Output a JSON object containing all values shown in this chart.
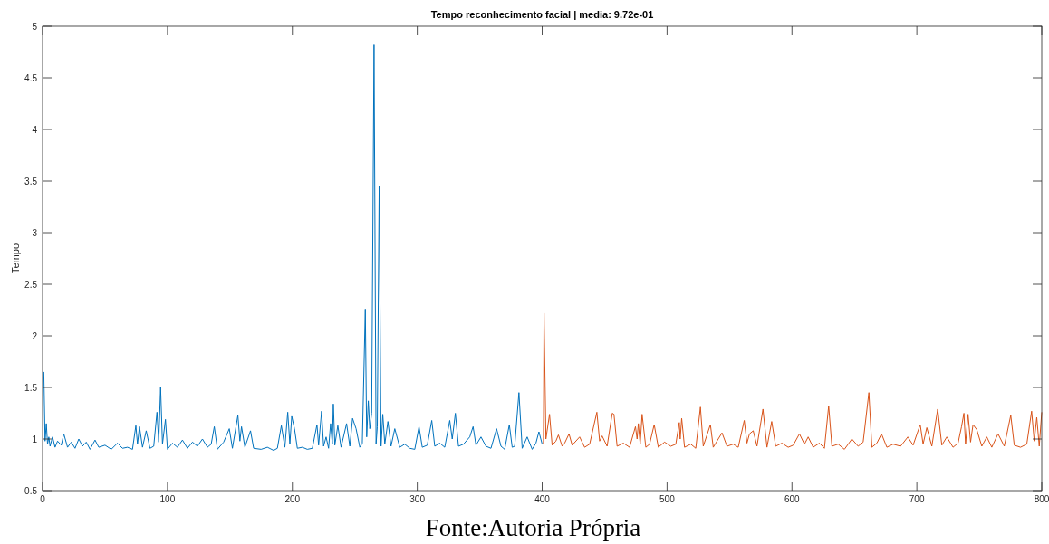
{
  "chart_data": {
    "type": "line",
    "title": "Tempo reconhecimento facial | media: 9.72e-01",
    "ylabel": "Tempo",
    "annotations": [
      "Fonte:Autoria Própria"
    ],
    "xlim": [
      0,
      800
    ],
    "xticks": [
      0,
      100,
      200,
      300,
      400,
      500,
      600,
      700,
      800
    ],
    "ylim": [
      0.5,
      5
    ],
    "yticks": [
      0.5,
      1,
      1.5,
      2,
      2.5,
      3,
      3.5,
      4,
      4.5,
      5
    ],
    "grid": false,
    "line_style": "solid",
    "marker": "none",
    "series": [
      {
        "color": "#0072bd",
        "x": [
          1,
          2,
          3,
          4,
          5,
          6,
          8,
          10,
          12,
          15,
          17,
          20,
          23,
          26,
          29,
          32,
          35,
          38,
          42,
          45,
          50,
          55,
          60,
          64,
          68,
          72,
          74.7,
          76,
          77.6,
          80,
          83,
          86,
          89,
          91.6,
          93,
          94.5,
          96,
          98.4,
          100,
          104,
          108,
          112,
          116,
          120,
          124,
          128,
          132,
          135,
          137.5,
          140,
          145,
          149.5,
          152,
          156.4,
          158,
          159.3,
          162,
          166.5,
          169,
          175,
          180,
          185,
          188,
          191.2,
          194,
          196.3,
          198,
          199.5,
          201.7,
          204,
          208,
          212,
          216,
          219.7,
          221,
          223.4,
          225,
          227,
          229,
          230.6,
          232,
          232.8,
          234,
          236.4,
          239,
          243.4,
          246,
          248.2,
          251,
          254,
          256,
          258.4,
          259.5,
          260.8,
          262,
          263.5,
          265.4,
          267,
          268,
          269.5,
          271,
          272.4,
          274,
          276.5,
          279,
          282,
          286,
          290,
          294,
          298,
          301.4,
          304,
          308,
          311.6,
          314,
          318,
          322,
          326,
          328,
          330.5,
          333,
          337,
          342,
          344.7,
          347,
          351,
          355,
          359,
          363.5,
          367,
          370,
          373.7,
          376,
          378,
          381.4,
          384,
          388,
          392,
          395,
          397.4,
          400
        ],
        "values": [
          1.65,
          0.98,
          1.15,
          0.95,
          1.02,
          0.93,
          1.02,
          0.92,
          0.98,
          0.94,
          1.05,
          0.92,
          0.97,
          0.91,
          1.0,
          0.93,
          0.97,
          0.9,
          0.99,
          0.92,
          0.94,
          0.9,
          0.96,
          0.91,
          0.92,
          0.9,
          1.13,
          0.95,
          1.12,
          0.92,
          1.08,
          0.91,
          0.93,
          1.26,
          0.97,
          1.5,
          0.95,
          1.19,
          0.9,
          0.96,
          0.92,
          0.99,
          0.91,
          0.97,
          0.93,
          1.0,
          0.92,
          0.95,
          1.12,
          0.9,
          0.97,
          1.1,
          0.91,
          1.23,
          0.98,
          1.12,
          0.92,
          1.08,
          0.91,
          0.9,
          0.92,
          0.89,
          0.91,
          1.13,
          0.92,
          1.26,
          0.95,
          1.22,
          1.1,
          0.91,
          0.92,
          0.9,
          0.91,
          1.14,
          0.94,
          1.27,
          0.93,
          1.02,
          0.91,
          1.15,
          0.95,
          1.34,
          0.94,
          1.13,
          0.92,
          1.15,
          0.93,
          1.2,
          1.1,
          0.92,
          0.96,
          2.26,
          1.02,
          1.37,
          1.1,
          1.25,
          4.82,
          0.95,
          1.12,
          3.45,
          0.93,
          1.24,
          0.95,
          1.17,
          0.93,
          1.1,
          0.92,
          0.95,
          0.91,
          0.9,
          1.12,
          0.92,
          0.94,
          1.18,
          0.93,
          0.96,
          0.92,
          1.18,
          1.0,
          1.25,
          0.93,
          0.95,
          1.02,
          1.12,
          0.94,
          1.02,
          0.93,
          0.91,
          1.1,
          0.93,
          0.9,
          1.14,
          0.92,
          0.93,
          1.45,
          0.91,
          1.02,
          0.9,
          0.96,
          1.07,
          0.95
        ]
      },
      {
        "color": "#d95319",
        "x": [
          401,
          401.5,
          403,
          405.9,
          408,
          411,
          413,
          416,
          418,
          421.5,
          424,
          430,
          434,
          438,
          443.8,
          446,
          448,
          452,
          456.1,
          457.5,
          460,
          465,
          470,
          474.7,
          476,
          477,
          478.5,
          480,
          483,
          486,
          489.7,
          493,
          498,
          503,
          507,
          509.8,
          510.5,
          511.7,
          514,
          519,
          523,
          526.7,
          529,
          534.7,
          537,
          540,
          544,
          548,
          553,
          557,
          561.8,
          564,
          566,
          569,
          572,
          576.8,
          580,
          583.8,
          587,
          592,
          597,
          601,
          606,
          610,
          613,
          617,
          622,
          626,
          629.4,
          632,
          637,
          642,
          648,
          653,
          657,
          661.6,
          664,
          668,
          671.7,
          676,
          681,
          687,
          692.8,
          697,
          702.7,
          705,
          708,
          712,
          716.7,
          720,
          724,
          729,
          733,
          735.8,
          737.7,
          739,
          741,
          743,
          745,
          748,
          752,
          756,
          760,
          765,
          770,
          775.2,
          778,
          783,
          788,
          791.9,
          794,
          796,
          798,
          800
        ],
        "values": [
          0.95,
          2.22,
          1.0,
          1.24,
          0.94,
          0.98,
          1.04,
          0.93,
          0.96,
          1.05,
          0.94,
          1.02,
          0.92,
          0.95,
          1.26,
          0.98,
          1.03,
          0.93,
          1.25,
          1.24,
          0.93,
          0.96,
          0.92,
          1.12,
          1.0,
          1.15,
          0.95,
          1.24,
          0.92,
          0.95,
          1.14,
          0.92,
          0.97,
          0.93,
          0.95,
          1.16,
          1.0,
          1.2,
          0.92,
          0.95,
          0.91,
          1.31,
          0.93,
          1.14,
          0.92,
          0.98,
          1.06,
          0.93,
          0.95,
          0.92,
          1.18,
          0.96,
          1.05,
          1.08,
          0.93,
          1.29,
          0.92,
          1.17,
          0.93,
          0.96,
          0.92,
          0.94,
          1.05,
          0.95,
          1.02,
          0.92,
          0.96,
          0.91,
          1.32,
          0.93,
          0.95,
          0.9,
          1.0,
          0.93,
          0.97,
          1.45,
          0.92,
          0.96,
          1.05,
          0.92,
          0.95,
          0.93,
          1.02,
          0.94,
          1.14,
          0.95,
          1.11,
          0.93,
          1.29,
          0.94,
          1.02,
          0.92,
          0.96,
          1.12,
          1.25,
          0.95,
          1.24,
          0.97,
          1.14,
          1.09,
          0.93,
          1.02,
          0.92,
          1.05,
          0.93,
          1.23,
          0.94,
          0.92,
          0.95,
          1.27,
          0.98,
          1.21,
          0.93,
          1.26
        ]
      }
    ]
  }
}
